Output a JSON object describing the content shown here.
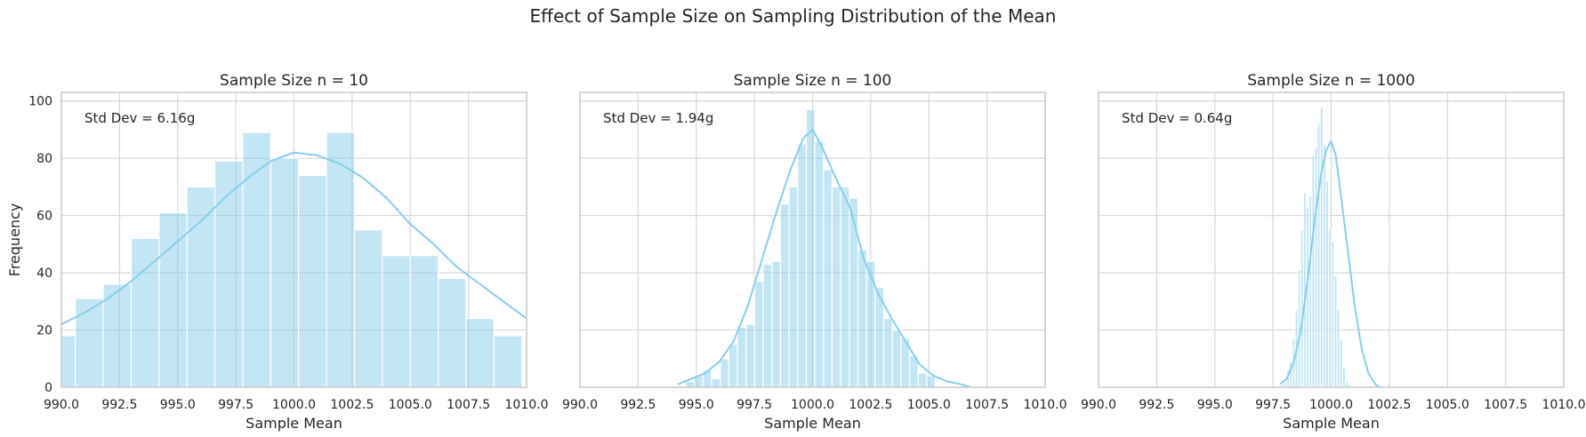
{
  "figure_title": "Effect of Sample Size on Sampling Distribution of the Mean",
  "chart_data": [
    {
      "type": "bar",
      "title": "Sample Size n = 10",
      "xlabel": "Sample Mean",
      "ylabel": "Frequency",
      "xlim": [
        990,
        1010
      ],
      "ylim": [
        0,
        103
      ],
      "xticks": [
        "990.0",
        "992.5",
        "995.0",
        "997.5",
        "1000.0",
        "1002.5",
        "1005.0",
        "1007.5",
        "1010.0"
      ],
      "yticks": [
        "0",
        "20",
        "40",
        "60",
        "80",
        "100"
      ],
      "annotation": "Std Dev = 6.16g",
      "bins": {
        "start": 989.4,
        "width": 1.2,
        "counts": [
          18,
          31,
          36,
          52,
          61,
          70,
          79,
          89,
          80,
          74,
          89,
          55,
          46,
          46,
          38,
          24,
          18
        ]
      },
      "kde": {
        "x": [
          990,
          991,
          992,
          993,
          994,
          995,
          996,
          997,
          998,
          999,
          1000,
          1001,
          1002,
          1003,
          1004,
          1005,
          1006,
          1007,
          1008,
          1009,
          1010
        ],
        "y": [
          22,
          26,
          31,
          37,
          44,
          51,
          58,
          66,
          73,
          79,
          82,
          81,
          78,
          73,
          66,
          57,
          50,
          42,
          36,
          30,
          24
        ]
      }
    },
    {
      "type": "bar",
      "title": "Sample Size n = 100",
      "xlabel": "Sample Mean",
      "ylabel": "",
      "xlim": [
        990,
        1010
      ],
      "ylim": [
        0,
        103
      ],
      "xticks": [
        "990.0",
        "992.5",
        "995.0",
        "997.5",
        "1000.0",
        "1002.5",
        "1005.0",
        "1007.5",
        "1010.0"
      ],
      "yticks": [],
      "annotation": "Std Dev = 1.94g",
      "bins": {
        "start": 994.55,
        "width": 0.37,
        "counts": [
          2,
          4,
          6,
          3,
          10,
          15,
          21,
          22,
          37,
          43,
          44,
          64,
          70,
          85,
          97,
          86,
          76,
          70,
          70,
          66,
          48,
          44,
          35,
          24,
          20,
          17,
          11,
          5,
          4
        ]
      },
      "kde": {
        "x": [
          994.2,
          994.8,
          995.4,
          996.0,
          996.6,
          997.2,
          997.8,
          998.4,
          999.0,
          999.6,
          1000.0,
          1000.4,
          1001.0,
          1001.6,
          1002.2,
          1002.8,
          1003.4,
          1004.0,
          1004.6,
          1005.2,
          1005.8,
          1006.4,
          1006.8
        ],
        "y": [
          1,
          3,
          5,
          9,
          16,
          28,
          44,
          60,
          75,
          87,
          90,
          84,
          73,
          63,
          45,
          33,
          24,
          16,
          8,
          4,
          2,
          1,
          0
        ]
      }
    },
    {
      "type": "bar",
      "title": "Sample Size n = 1000",
      "xlabel": "Sample Mean",
      "ylabel": "",
      "xlim": [
        990,
        1010
      ],
      "ylim": [
        0,
        103
      ],
      "xticks": [
        "990.0",
        "992.5",
        "995.0",
        "997.5",
        "1000.0",
        "1002.5",
        "1005.0",
        "1007.5",
        "1010.0"
      ],
      "yticks": [],
      "annotation": "Std Dev = 0.64g",
      "bins": {
        "start": 997.85,
        "width": 0.12,
        "counts": [
          1,
          2,
          6,
          9,
          17,
          27,
          41,
          55,
          68,
          63,
          67,
          81,
          84,
          92,
          98,
          85,
          72,
          55,
          51,
          39,
          27,
          17,
          7,
          2,
          1
        ]
      },
      "kde": {
        "x": [
          997.8,
          998.1,
          998.4,
          998.7,
          999.0,
          999.3,
          999.6,
          999.8,
          1000.0,
          1000.2,
          1000.4,
          1000.7,
          1001.0,
          1001.3,
          1001.6,
          1001.9,
          1002.1
        ],
        "y": [
          1,
          3,
          9,
          20,
          38,
          59,
          76,
          83,
          86,
          81,
          68,
          49,
          29,
          14,
          5,
          1,
          0
        ]
      }
    }
  ],
  "colors": {
    "bar": "#87ceeb",
    "bar_opacity": "0.5",
    "kde": "#87ceeb",
    "grid": "#d9d9d9",
    "spine": "#cccccc",
    "text": "#262626"
  }
}
